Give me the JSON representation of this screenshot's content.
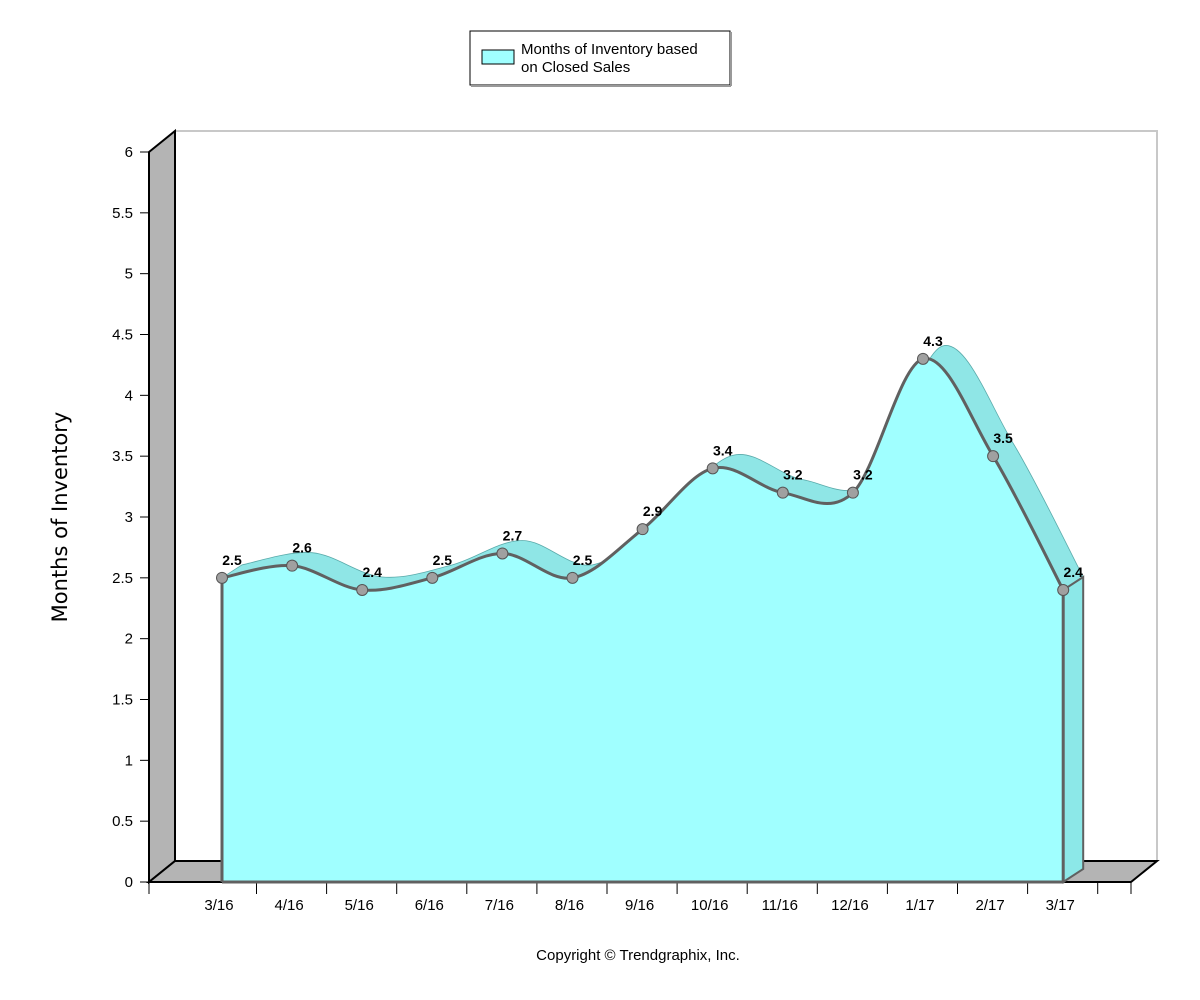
{
  "chart_data": {
    "type": "area",
    "categories": [
      "3/16",
      "4/16",
      "5/16",
      "6/16",
      "7/16",
      "8/16",
      "9/16",
      "10/16",
      "11/16",
      "12/16",
      "1/17",
      "2/17",
      "3/17"
    ],
    "series": [
      {
        "name": "Months of Inventory based on Closed Sales",
        "values": [
          2.5,
          2.6,
          2.4,
          2.5,
          2.7,
          2.5,
          2.9,
          3.4,
          3.2,
          3.2,
          4.3,
          3.5,
          2.4
        ]
      }
    ],
    "data_labels": [
      "2.5",
      "2.6",
      "2.4",
      "2.5",
      "2.7",
      "2.5",
      "2.9",
      "3.4",
      "3.2",
      "3.2",
      "4.3",
      "3.5",
      "2.4"
    ],
    "yticks": [
      "0",
      "0.5",
      "1",
      "1.5",
      "2",
      "2.5",
      "3",
      "3.5",
      "4",
      "4.5",
      "5",
      "5.5",
      "6"
    ],
    "ylim": [
      0,
      6
    ],
    "ylabel": "Months of Inventory",
    "xlabel": "",
    "title": "",
    "legend": {
      "label_line1": "Months of Inventory based",
      "label_line2": "on Closed Sales",
      "placement": "top-center"
    },
    "copyright": "Copyright © Trendgraphix, Inc.",
    "grid": false,
    "three_d": true
  },
  "colors": {
    "fill": "#a0ffff",
    "side": "#8ce8e8",
    "top_band": "#8fe6e6",
    "line": "#606060",
    "wall": "#b4b4b4",
    "marker": "#a0a0a0",
    "legend_swatch": "#a0ffff"
  }
}
